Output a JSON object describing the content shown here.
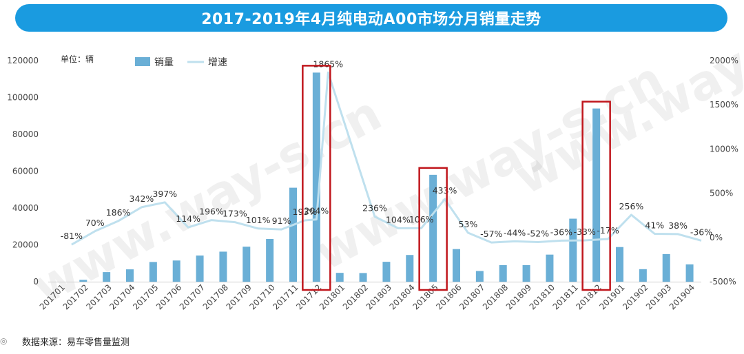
{
  "title": "2017-2019年4月纯电动A00市场分月销量走势",
  "unit_label": "单位：辆",
  "source_text": "数据来源：易车零售量监测",
  "watermark": "www.way-s.cn",
  "colors": {
    "bar": "#6aafd6",
    "line": "#bfe0ee",
    "title_bg": "#1a9be0",
    "highlight": "#c0161c"
  },
  "chart_data": {
    "type": "bar",
    "categories": [
      "201701",
      "201702",
      "201703",
      "201704",
      "201705",
      "201706",
      "201707",
      "201708",
      "201709",
      "201710",
      "201711",
      "201712",
      "201801",
      "201802",
      "201803",
      "201804",
      "201805",
      "201806",
      "201807",
      "201808",
      "201809",
      "201810",
      "201811",
      "201812",
      "201901",
      "201902",
      "201903",
      "201904"
    ],
    "series": [
      {
        "name": "销量",
        "type": "bar",
        "axis": "left",
        "values": [
          0,
          1000,
          5200,
          6700,
          10700,
          11500,
          14200,
          16300,
          19000,
          23200,
          51000,
          113500,
          4800,
          4700,
          10800,
          14500,
          58000,
          17700,
          5800,
          9000,
          9000,
          14700,
          34200,
          94000,
          18800,
          6800,
          15000,
          9400
        ]
      },
      {
        "name": "增速",
        "type": "line",
        "axis": "right",
        "values": [
          -81,
          70,
          186,
          342,
          397,
          114,
          196,
          173,
          101,
          91,
          193,
          204,
          1865,
          236,
          104,
          106,
          433,
          53,
          -57,
          -44,
          -52,
          -36,
          -33,
          -17,
          256,
          41,
          38,
          -36
        ],
        "point_index": [
          1,
          2,
          3,
          4,
          5,
          6,
          7,
          8,
          9,
          10,
          11,
          11.5,
          12,
          14,
          15,
          16,
          17,
          18,
          19,
          20,
          21,
          22,
          23,
          24,
          25,
          26,
          27,
          28
        ],
        "labels": [
          "-81%",
          "70%",
          "186%",
          "342%",
          "397%",
          "114%",
          "196%",
          "173%",
          "101%",
          "91%",
          "193%",
          "204%",
          "1865%",
          "236%",
          "104%",
          "106%",
          "433%",
          "53%",
          "-57%",
          "-44%",
          "-52%",
          "-36%",
          "-33%",
          "-17%",
          "256%",
          "41%",
          "38%",
          "-36%"
        ]
      }
    ],
    "ylim_left": [
      0,
      120000
    ],
    "yticks_left": [
      "0",
      "20000",
      "40000",
      "60000",
      "80000",
      "100000",
      "120000"
    ],
    "ylim_right": [
      -500,
      2000
    ],
    "yticks_right": [
      "-500%",
      "0%",
      "500%",
      "1000%",
      "1500%",
      "2000%"
    ],
    "legend": [
      "销量",
      "增速"
    ],
    "legend_position": "top-left",
    "highlighted_categories": [
      "201712",
      "201805",
      "201812"
    ],
    "grid": false
  }
}
